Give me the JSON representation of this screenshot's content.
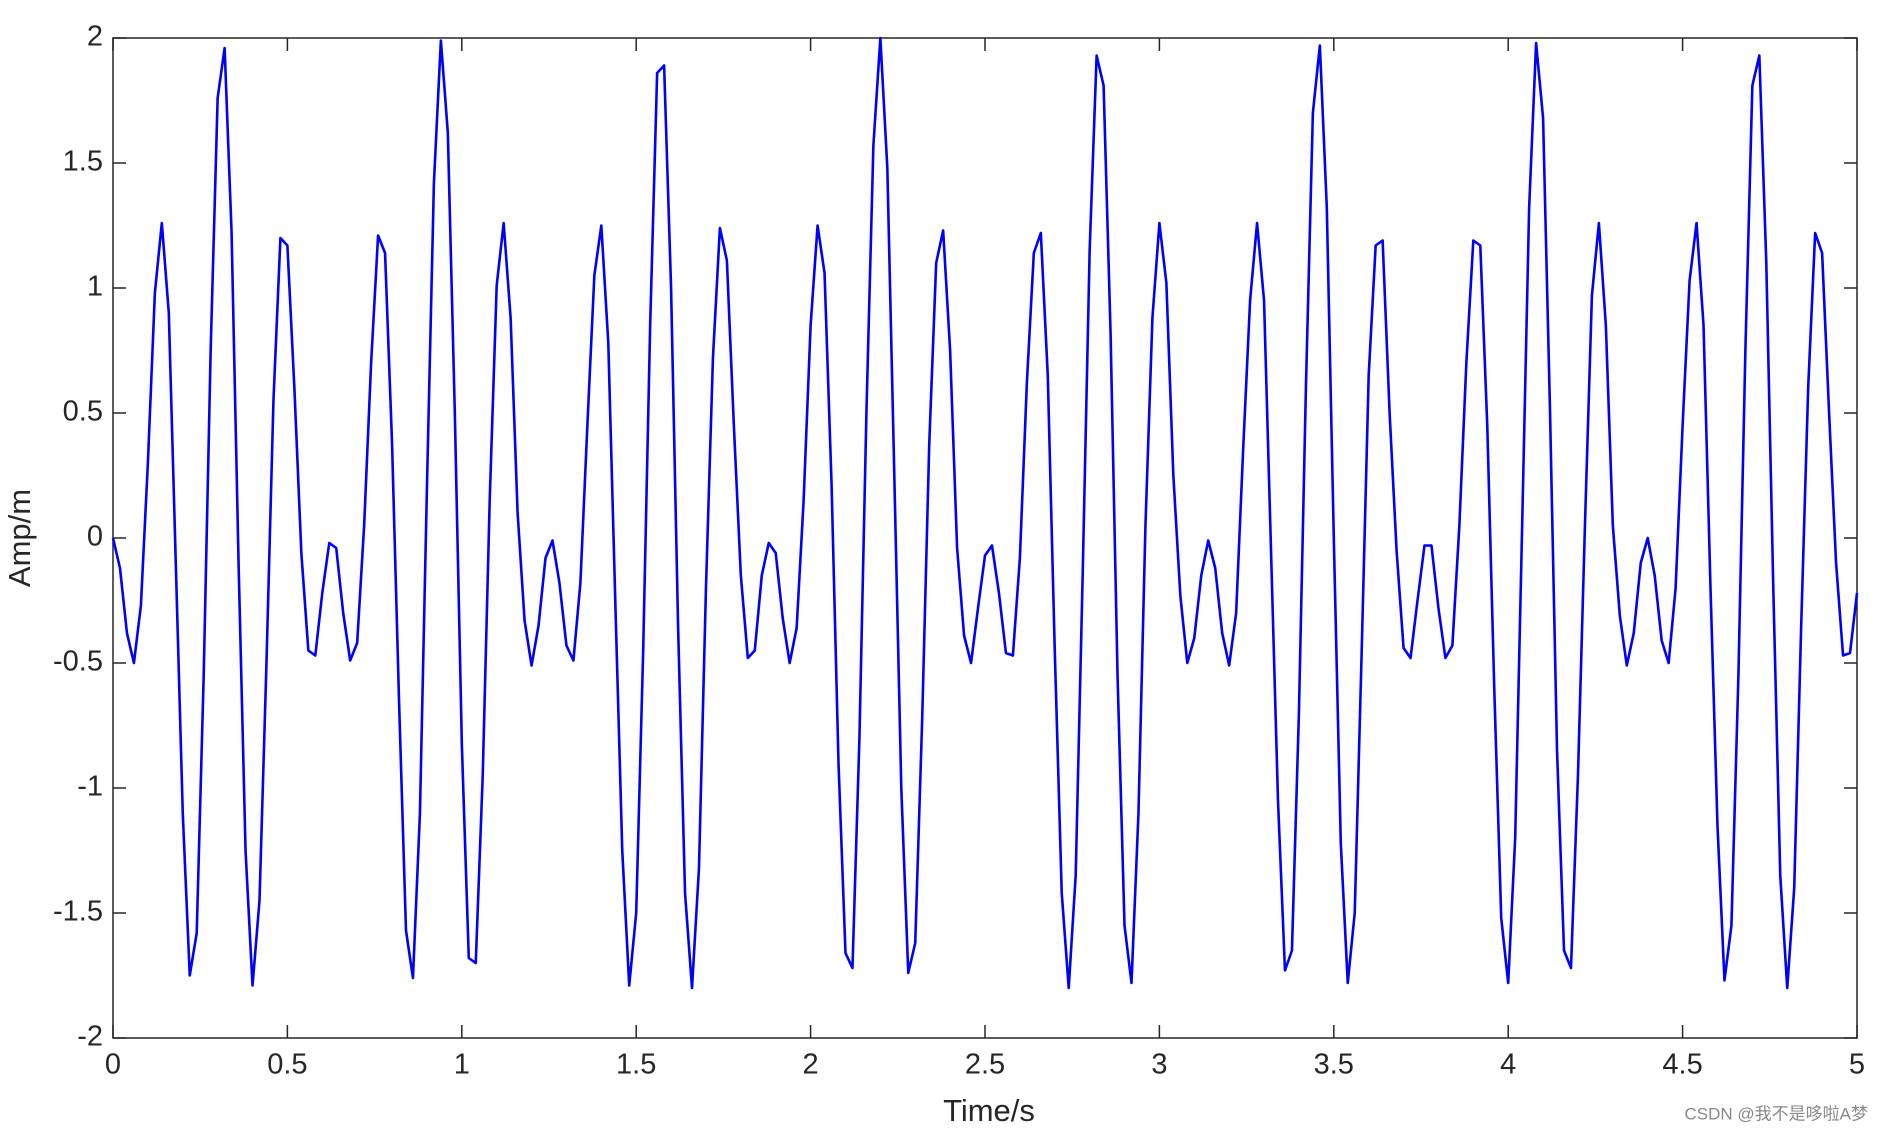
{
  "chart_data": {
    "type": "line",
    "xlabel": "Time/s",
    "ylabel": "Amp/m",
    "xlim": [
      0,
      5
    ],
    "ylim": [
      -2,
      2
    ],
    "xticks": [
      0,
      0.5,
      1,
      1.5,
      2,
      2.5,
      3,
      3.5,
      4,
      4.5,
      5
    ],
    "yticks": [
      -2,
      -1.5,
      -1,
      -0.5,
      0,
      0.5,
      1,
      1.5,
      2
    ],
    "x": [
      0,
      0.02,
      0.04,
      0.06,
      0.08,
      0.1,
      0.12,
      0.14,
      0.16,
      0.18,
      0.2,
      0.22,
      0.24,
      0.26,
      0.28,
      0.3,
      0.32,
      0.34,
      0.36,
      0.38,
      0.4,
      0.42,
      0.44,
      0.46,
      0.48,
      0.5,
      0.52,
      0.54,
      0.56,
      0.58,
      0.6,
      0.62,
      0.64,
      0.66,
      0.68,
      0.7,
      0.72,
      0.74,
      0.76,
      0.78,
      0.8,
      0.82,
      0.84,
      0.86,
      0.88,
      0.9,
      0.92,
      0.94,
      0.96,
      0.98,
      1,
      1.02,
      1.04,
      1.06,
      1.08,
      1.1,
      1.12,
      1.14,
      1.16,
      1.18,
      1.2,
      1.22,
      1.24,
      1.26,
      1.28,
      1.3,
      1.32,
      1.34,
      1.36,
      1.38,
      1.4,
      1.42,
      1.44,
      1.46,
      1.48,
      1.5,
      1.52,
      1.54,
      1.56,
      1.58,
      1.6,
      1.62,
      1.64,
      1.66,
      1.68,
      1.7,
      1.72,
      1.74,
      1.76,
      1.78,
      1.8,
      1.82,
      1.84,
      1.86,
      1.88,
      1.9,
      1.92,
      1.94,
      1.96,
      1.98,
      2,
      2.02,
      2.04,
      2.06,
      2.08,
      2.1,
      2.12,
      2.14,
      2.16,
      2.18,
      2.2,
      2.22,
      2.24,
      2.26,
      2.28,
      2.3,
      2.32,
      2.34,
      2.36,
      2.38,
      2.4,
      2.42,
      2.44,
      2.46,
      2.48,
      2.5,
      2.52,
      2.54,
      2.56,
      2.58,
      2.6,
      2.62,
      2.64,
      2.66,
      2.68,
      2.7,
      2.72,
      2.74,
      2.76,
      2.78,
      2.8,
      2.82,
      2.84,
      2.86,
      2.88,
      2.9,
      2.92,
      2.94,
      2.96,
      2.98,
      3,
      3.02,
      3.04,
      3.06,
      3.08,
      3.1,
      3.12,
      3.14,
      3.16,
      3.18,
      3.2,
      3.22,
      3.24,
      3.26,
      3.28,
      3.3,
      3.32,
      3.34,
      3.36,
      3.38,
      3.4,
      3.42,
      3.44,
      3.46,
      3.48,
      3.5,
      3.52,
      3.54,
      3.56,
      3.58,
      3.6,
      3.62,
      3.64,
      3.66,
      3.68,
      3.7,
      3.72,
      3.74,
      3.76,
      3.78,
      3.8,
      3.82,
      3.84,
      3.86,
      3.88,
      3.9,
      3.92,
      3.94,
      3.96,
      3.98,
      4,
      4.02,
      4.04,
      4.06,
      4.08,
      4.1,
      4.12,
      4.14,
      4.16,
      4.18,
      4.2,
      4.22,
      4.24,
      4.26,
      4.28,
      4.3,
      4.32,
      4.34,
      4.36,
      4.38,
      4.4,
      4.42,
      4.44,
      4.46,
      4.48,
      4.5,
      4.52,
      4.54,
      4.56,
      4.58,
      4.6,
      4.62,
      4.64,
      4.66,
      4.68,
      4.7,
      4.72,
      4.74,
      4.76,
      4.78,
      4.8,
      4.82,
      4.84,
      4.86,
      4.88,
      4.9,
      4.92,
      4.94,
      4.96,
      4.98,
      5
    ],
    "series": [
      {
        "color": "#0000ff",
        "values": [
          0,
          -0.12,
          -0.38,
          -0.5,
          -0.27,
          0.3,
          0.98,
          1.26,
          0.9,
          -0.1,
          -1.1,
          -1.75,
          -1.58,
          -0.55,
          0.75,
          1.76,
          1.96,
          1.22,
          -0.1,
          -1.25,
          -1.79,
          -1.45,
          -0.5,
          0.55,
          1.2,
          1.17,
          0.6,
          -0.06,
          -0.45,
          -0.47,
          -0.22,
          -0.02,
          -0.04,
          -0.3,
          -0.49,
          -0.42,
          0.05,
          0.7,
          1.21,
          1.14,
          0.38,
          -0.65,
          -1.57,
          -1.76,
          -1.1,
          0.2,
          1.42,
          1.99,
          1.62,
          0.5,
          -0.82,
          -1.68,
          -1.7,
          -0.95,
          0.15,
          1.01,
          1.26,
          0.88,
          0.1,
          -0.33,
          -0.51,
          -0.35,
          -0.08,
          -0.01,
          -0.18,
          -0.43,
          -0.49,
          -0.18,
          0.45,
          1.05,
          1.25,
          0.78,
          -0.25,
          -1.25,
          -1.79,
          -1.5,
          -0.45,
          0.85,
          1.86,
          1.89,
          1.0,
          -0.35,
          -1.42,
          -1.8,
          -1.32,
          -0.2,
          0.72,
          1.24,
          1.11,
          0.45,
          -0.15,
          -0.48,
          -0.45,
          -0.15,
          -0.02,
          -0.06,
          -0.32,
          -0.5,
          -0.36,
          0.15,
          0.85,
          1.25,
          1.06,
          0.22,
          -0.9,
          -1.66,
          -1.72,
          -0.8,
          0.5,
          1.57,
          2.0,
          1.48,
          0.25,
          -1.0,
          -1.74,
          -1.62,
          -0.72,
          0.37,
          1.1,
          1.23,
          0.75,
          -0.04,
          -0.39,
          -0.5,
          -0.28,
          -0.07,
          -0.03,
          -0.22,
          -0.46,
          -0.47,
          -0.08,
          0.62,
          1.14,
          1.22,
          0.65,
          -0.45,
          -1.42,
          -1.8,
          -1.35,
          -0.15,
          1.15,
          1.93,
          1.81,
          0.82,
          -0.55,
          -1.55,
          -1.78,
          -1.1,
          0.05,
          0.88,
          1.26,
          1.02,
          0.25,
          -0.23,
          -0.5,
          -0.4,
          -0.15,
          -0.01,
          -0.12,
          -0.38,
          -0.51,
          -0.3,
          0.35,
          0.95,
          1.26,
          0.95,
          -0.05,
          -1.05,
          -1.73,
          -1.65,
          -0.7,
          0.6,
          1.7,
          1.97,
          1.32,
          0.0,
          -1.22,
          -1.78,
          -1.5,
          -0.45,
          0.65,
          1.17,
          1.19,
          0.5,
          -0.05,
          -0.44,
          -0.48,
          -0.25,
          -0.03,
          -0.03,
          -0.28,
          -0.48,
          -0.43,
          0.05,
          0.7,
          1.19,
          1.17,
          0.45,
          -0.6,
          -1.52,
          -1.78,
          -1.2,
          0.05,
          1.32,
          1.98,
          1.68,
          0.5,
          -0.85,
          -1.65,
          -1.72,
          -0.95,
          0.05,
          0.97,
          1.26,
          0.85,
          0.05,
          -0.31,
          -0.51,
          -0.38,
          -0.1,
          0.0,
          -0.15,
          -0.41,
          -0.5,
          -0.2,
          0.45,
          1.03,
          1.26,
          0.85,
          -0.2,
          -1.15,
          -1.77,
          -1.55,
          -0.55,
          0.75,
          1.81,
          1.93,
          1.1,
          -0.2,
          -1.35,
          -1.8,
          -1.4,
          -0.35,
          0.6,
          1.22,
          1.14,
          0.5,
          -0.1,
          -0.47,
          -0.46,
          -0.22
        ]
      }
    ]
  },
  "watermark": "CSDN @我不是哆啦A梦"
}
